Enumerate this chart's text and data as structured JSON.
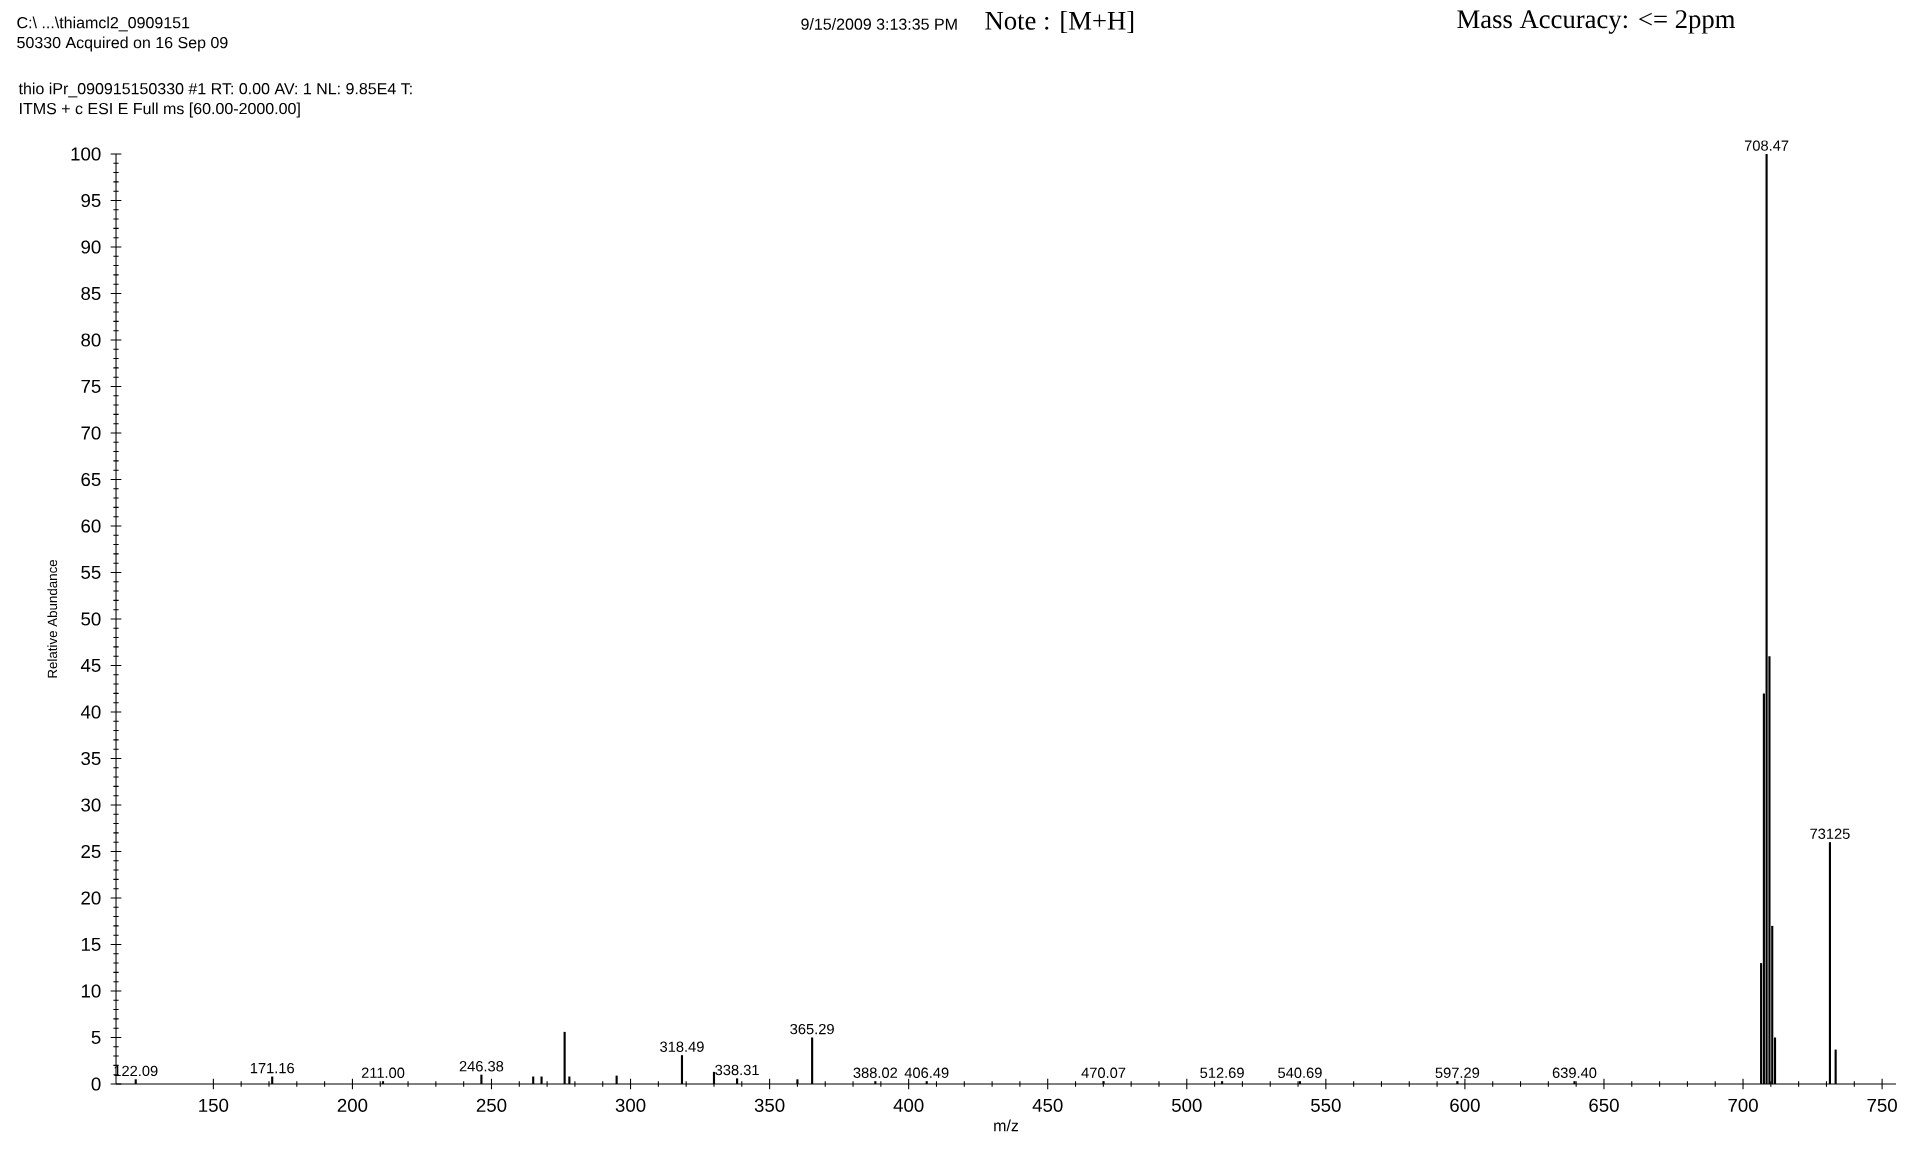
{
  "chart_data": {
    "type": "bar",
    "title": "thio iPr_090915150330 #1 RT: 0.00 AV: 1 NL: 9.85E4 T:",
    "subtitle": "ITMS + c ESI E Full ms [60.00-2000.00]",
    "xlabel": "m/z",
    "ylabel": "Relative Abundance",
    "color": "#000000",
    "x": [
      122.09,
      171.16,
      211.0,
      246.38,
      265,
      268,
      276.3,
      278,
      295,
      318.49,
      330,
      338.31,
      360,
      365.29,
      388.02,
      406.49,
      470.07,
      512.69,
      540.69,
      597.29,
      639.4,
      706.5,
      707.5,
      708.47,
      709.5,
      710.5,
      711.5,
      731.25,
      733.3
    ],
    "values": [
      0.5,
      0.8,
      0.3,
      1.0,
      0.8,
      0.8,
      5.6,
      0.8,
      0.9,
      3.1,
      1.3,
      0.6,
      0.5,
      5.0,
      0.3,
      0.3,
      0.3,
      0.3,
      0.3,
      0.3,
      0.3,
      13,
      42,
      100,
      46,
      17,
      5,
      26,
      3.7
    ],
    "xlim": [
      115,
      755
    ],
    "xticks": [
      150,
      200,
      250,
      300,
      350,
      400,
      450,
      500,
      550,
      600,
      650,
      700,
      750
    ],
    "ylim": [
      0,
      100
    ],
    "yticks": [
      0,
      5,
      10,
      15,
      20,
      25,
      30,
      35,
      40,
      45,
      50,
      55,
      60,
      65,
      70,
      75,
      80,
      85,
      90,
      95,
      100
    ],
    "annotations": [
      "C:\\ ...\\thiamcl2_0909151",
      "50330 Acquired on 16 Sep 09",
      "9/15/2009 3:13:35 PM",
      "Note   :  [M+H]",
      "Mass Accuracy: <= 2ppm",
      {
        "text": "122.09",
        "x": 122.09,
        "y": 0.5
      },
      {
        "text": "171.16",
        "x": 171.16,
        "y": 0.8
      },
      {
        "text": "211.00",
        "x": 211.0,
        "y": 0.3
      },
      {
        "text": "246.38",
        "x": 246.38,
        "y": 1.0
      },
      {
        "text": "318.49",
        "x": 318.49,
        "y": 3.1
      },
      {
        "text": "338.31",
        "x": 338.31,
        "y": 0.6
      },
      {
        "text": "365.29",
        "x": 365.29,
        "y": 5.0
      },
      {
        "text": "388.02",
        "x": 388.02,
        "y": 0.3
      },
      {
        "text": "406.49",
        "x": 406.49,
        "y": 0.3
      },
      {
        "text": "470.07",
        "x": 470.07,
        "y": 0.3
      },
      {
        "text": "512.69",
        "x": 512.69,
        "y": 0.3
      },
      {
        "text": "540.69",
        "x": 540.69,
        "y": 0.3
      },
      {
        "text": "597.29",
        "x": 597.29,
        "y": 0.3
      },
      {
        "text": "639.40",
        "x": 639.4,
        "y": 0.3
      },
      {
        "text": "708.47",
        "x": 708.47,
        "y": 100
      },
      {
        "text": "73125",
        "x": 731.25,
        "y": 26
      }
    ]
  }
}
